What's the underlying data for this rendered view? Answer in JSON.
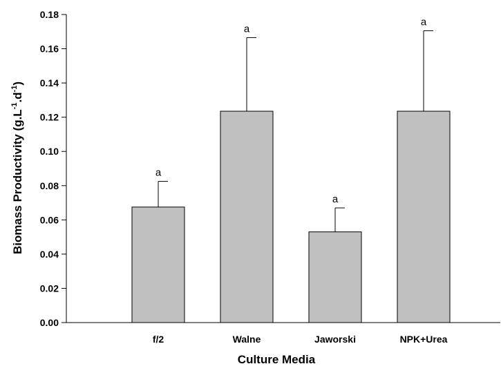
{
  "chart_data": {
    "type": "bar",
    "title": "",
    "xlabel": "Culture Media",
    "ylabel": {
      "base": "Biomass Productivity (g.L",
      "sup1": "-1",
      "mid": ".d",
      "sup2": "-1",
      "end": ")"
    },
    "categories": [
      "f/2",
      "Walne",
      "Jaworski",
      "NPK+Urea"
    ],
    "values": [
      0.0675,
      0.1235,
      0.053,
      0.1235
    ],
    "errors": [
      0.015,
      0.043,
      0.014,
      0.047
    ],
    "significance_labels": [
      "a",
      "a",
      "a",
      "a"
    ],
    "ylim": [
      0,
      0.18
    ],
    "yticks": [
      "0.00",
      "0.02",
      "0.04",
      "0.06",
      "0.08",
      "0.10",
      "0.12",
      "0.14",
      "0.16",
      "0.18"
    ],
    "bar_color": "#c0c0c0",
    "grid": false,
    "legend": "none"
  }
}
